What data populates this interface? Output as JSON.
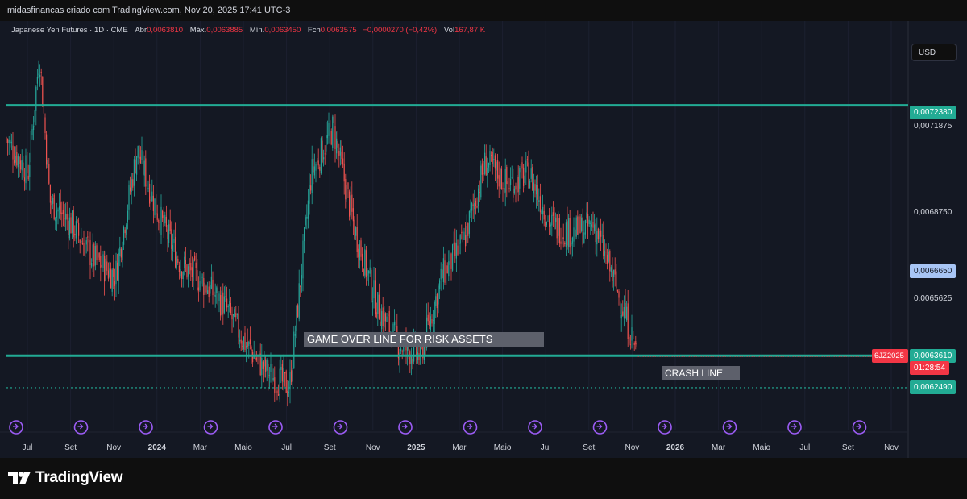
{
  "header": {
    "text": "midasfinancas criado com TradingView.com, Nov 20, 2025 17:41 UTC-3"
  },
  "legend": {
    "title": "Japanese Yen Futures · 1D · CME",
    "open_label": "Abr",
    "open": "0,0063810",
    "high_label": "Máx.",
    "high": "0,0063885",
    "low_label": "Mín.",
    "low": "0,0063450",
    "close_label": "Fch",
    "close": "0,0063575",
    "change": "−0,0000270 (−0,42%)",
    "vol_label": "Vol",
    "vol": "167,87 K"
  },
  "currency": "USD",
  "price_axis": {
    "labels": [
      "0,0071875",
      "0,0068750",
      "0,0065625"
    ],
    "tags": {
      "top_line": "0,0072380",
      "blue": "0,0066650",
      "bottom_line": "0,0063610",
      "dotted": "0,0062490",
      "symbol": "6JZ2025",
      "countdown": "01:28:54"
    }
  },
  "annotations": {
    "game_over": "GAME OVER LINE FOR RISK ASSETS",
    "crash": "CRASH LINE"
  },
  "brand": {
    "name": "TradingView"
  },
  "colors": {
    "up": "#26a69a",
    "down": "#ef5350",
    "line": "#22ab94",
    "blue_tag": "#a8c5f5",
    "red_tag": "#f23645",
    "event": "#9c5cf5"
  },
  "chart_data": {
    "type": "candlestick",
    "y_unit": "USD per JPY",
    "x_ticks": [
      "Jul",
      "Set",
      "Nov",
      "2024",
      "Mar",
      "Maio",
      "Jul",
      "Set",
      "Nov",
      "2025",
      "Mar",
      "Maio",
      "Jul",
      "Set",
      "Nov",
      "2026",
      "Mar",
      "Maio",
      "Jul",
      "Set",
      "Nov"
    ],
    "x_range": [
      "2023-06",
      "2026-11"
    ],
    "y_range": [
      0.00615,
      0.00746
    ],
    "horizontal_lines": [
      {
        "value": 0.007238,
        "style": "solid"
      },
      {
        "value": 0.006361,
        "style": "solid"
      },
      {
        "value": 0.006249,
        "style": "dotted"
      }
    ],
    "last_close": 0.0063575,
    "path": [
      [
        "2023-06",
        0.00712
      ],
      [
        "2023-07",
        0.007
      ],
      [
        "2023-07",
        0.00742
      ],
      [
        "2023-08",
        0.0069
      ],
      [
        "2023-09",
        0.00682
      ],
      [
        "2023-10",
        0.0067
      ],
      [
        "2023-11",
        0.00664
      ],
      [
        "2023-12",
        0.00708
      ],
      [
        "2024-01",
        0.00685
      ],
      [
        "2024-02",
        0.00668
      ],
      [
        "2024-03",
        0.00662
      ],
      [
        "2024-04",
        0.00654
      ],
      [
        "2024-05",
        0.0064
      ],
      [
        "2024-06",
        0.0063
      ],
      [
        "2024-07",
        0.00625
      ],
      [
        "2024-08",
        0.007
      ],
      [
        "2024-09",
        0.00716
      ],
      [
        "2024-10",
        0.0068
      ],
      [
        "2024-11",
        0.00654
      ],
      [
        "2024-12",
        0.0064
      ],
      [
        "2025-01",
        0.00636
      ],
      [
        "2025-02",
        0.00664
      ],
      [
        "2025-03",
        0.00676
      ],
      [
        "2025-04",
        0.00704
      ],
      [
        "2025-05",
        0.00696
      ],
      [
        "2025-06",
        0.007
      ],
      [
        "2025-07",
        0.00682
      ],
      [
        "2025-08",
        0.00679
      ],
      [
        "2025-09",
        0.00682
      ],
      [
        "2025-10",
        0.0066
      ],
      [
        "2025-11",
        0.006358
      ]
    ]
  }
}
